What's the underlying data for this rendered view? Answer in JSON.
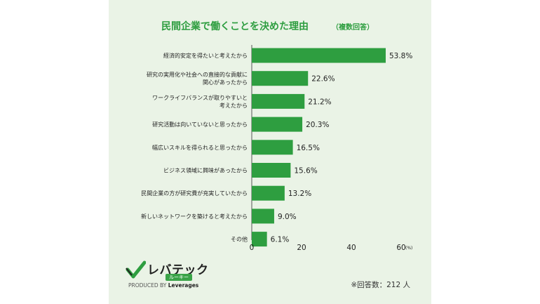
{
  "colors": {
    "accent": "#2e9e40",
    "bar": "#2e9e40",
    "card_bg": "#eaf3e6",
    "text": "#333333"
  },
  "chart_data": {
    "type": "bar",
    "orientation": "horizontal",
    "title": "民間企業で働くことを決めた理由",
    "subtitle": "（複数回答）",
    "categories": [
      "経済的安定を得たいと考えたから",
      "研究の実用化や社会への直接的な貢献に関心があったから",
      "ワークライフバランスが取りやすいと考えたから",
      "研究活動は向いていないと思ったから",
      "幅広いスキルを得られると思ったから",
      "ビジネス領域に興味があったから",
      "民間企業の方が研究費が充実していたから",
      "新しいネットワークを築けると考えたから",
      "その他"
    ],
    "category_lines": [
      [
        "経済的安定を得たいと考えたから"
      ],
      [
        "研究の実用化や社会への直接的な貢献に",
        "関心があったから"
      ],
      [
        "ワークライフバランスが取りやすいと",
        "考えたから"
      ],
      [
        "研究活動は向いていないと思ったから"
      ],
      [
        "幅広いスキルを得られると思ったから"
      ],
      [
        "ビジネス領域に興味があったから"
      ],
      [
        "民間企業の方が研究費が充実していたから"
      ],
      [
        "新しいネットワークを築けると考えたから"
      ],
      [
        "その他"
      ]
    ],
    "values": [
      53.8,
      22.6,
      21.2,
      20.3,
      16.5,
      15.6,
      13.2,
      9.0,
      6.1
    ],
    "value_labels": [
      "53.8%",
      "22.6%",
      "21.2%",
      "20.3%",
      "16.5%",
      "15.6%",
      "13.2%",
      "9.0%",
      "6.1%"
    ],
    "x_ticks": [
      "0",
      "20",
      "40",
      "60"
    ],
    "x_unit": "(%)",
    "xlim": [
      0,
      60
    ],
    "grid": false,
    "legend": "none"
  },
  "footer": {
    "logo_main": "レバテック",
    "logo_sub": "ルーキー",
    "produced_by": "PRODUCED BY",
    "produced_brand": "Leverages",
    "respondents": "※回答数：212 人"
  }
}
